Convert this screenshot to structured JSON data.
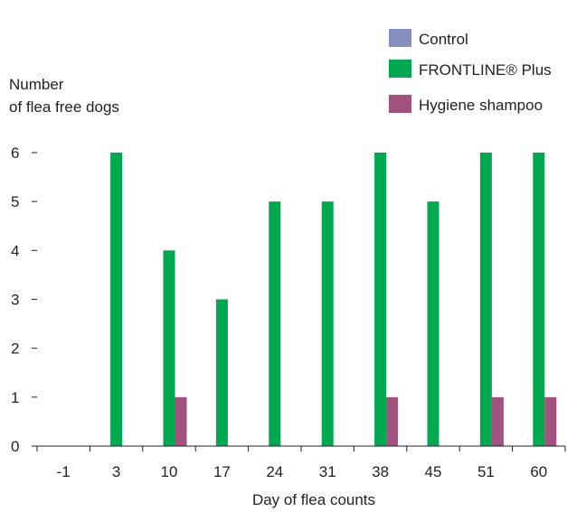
{
  "chart_data": {
    "type": "bar",
    "categories": [
      "-1",
      "3",
      "10",
      "17",
      "24",
      "31",
      "38",
      "45",
      "51",
      "60"
    ],
    "series": [
      {
        "name": "Control",
        "color": "#8590c0",
        "values": [
          0,
          0,
          0,
          0,
          0,
          0,
          0,
          0,
          0,
          0
        ]
      },
      {
        "name": "FRONTLINE® Plus",
        "color": "#00a950",
        "values": [
          0,
          6,
          4,
          3,
          5,
          5,
          6,
          5,
          6,
          6
        ]
      },
      {
        "name": "Hygiene shampoo",
        "color": "#a1527f",
        "values": [
          0,
          0,
          1,
          0,
          0,
          0,
          1,
          0,
          1,
          1
        ]
      }
    ],
    "ylabel": [
      "Number",
      "of flea free dogs"
    ],
    "xlabel": "Day of flea counts",
    "ylim": [
      0,
      6
    ],
    "yticks": [
      0,
      1,
      2,
      3,
      4,
      5,
      6
    ],
    "grid": false,
    "legend_position": "top-right"
  }
}
